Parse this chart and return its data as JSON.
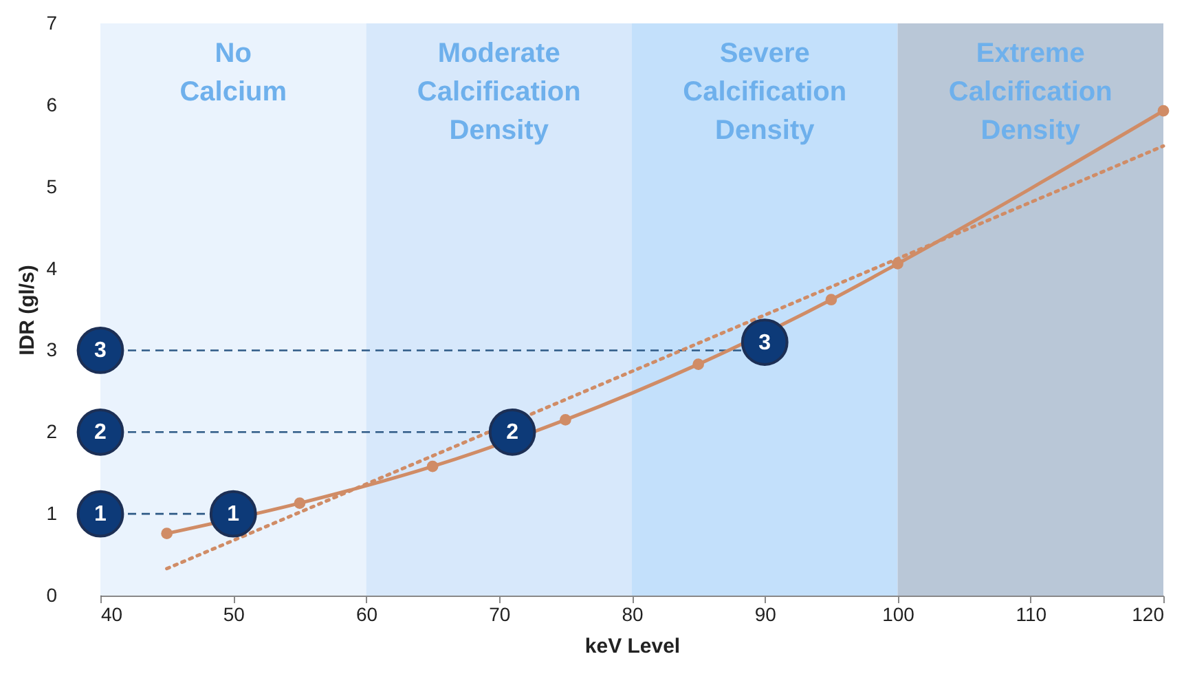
{
  "chart_data": {
    "type": "line",
    "xlabel": "keV Level",
    "ylabel": "IDR (gl/s)",
    "xlim": [
      40,
      120
    ],
    "xticks": [
      40,
      50,
      60,
      70,
      80,
      90,
      100,
      110,
      120
    ],
    "ylim": [
      0,
      7
    ],
    "yticks": [
      0,
      1,
      2,
      3,
      4,
      5,
      6,
      7
    ],
    "grid": false,
    "series": [
      {
        "x": [
          45,
          55,
          65,
          75,
          85,
          95,
          100,
          120
        ],
        "values": [
          0.76,
          1.13,
          1.58,
          2.15,
          2.83,
          3.62,
          4.06,
          5.93
        ],
        "color": "#d08c66",
        "marker": "circle",
        "line_style": "solid"
      },
      {
        "type": "line",
        "x": [
          45,
          120
        ],
        "values": [
          0.33,
          5.5
        ],
        "color": "#d08c66",
        "marker": "none",
        "line_style": "dotted"
      }
    ],
    "bands": [
      {
        "axis": "x",
        "from": 40,
        "to": 60,
        "label": "No\nCalcium",
        "color": "#eaf3fd"
      },
      {
        "axis": "x",
        "from": 60,
        "to": 80,
        "label": "Moderate\nCalcification\nDensity",
        "color": "#d7e8fb"
      },
      {
        "axis": "x",
        "from": 80,
        "to": 100,
        "label": "Severe\nCalcification\nDensity",
        "color": "#c3e0fb"
      },
      {
        "axis": "x",
        "from": 100,
        "to": 120,
        "label": "Extreme\nCalcification\nDensity",
        "color": "#b9c7d7"
      }
    ],
    "ref_lines": [
      {
        "axis": "y",
        "value": 1,
        "label": "1",
        "line_style": "dashed",
        "color": "#2e5a86"
      },
      {
        "axis": "y",
        "value": 2,
        "label": "2",
        "line_style": "dashed",
        "color": "#2e5a86"
      },
      {
        "axis": "y",
        "value": 3,
        "label": "3",
        "line_style": "dashed",
        "color": "#2e5a86"
      }
    ],
    "annotations": [
      {
        "text": "1",
        "x": 50,
        "y": 1
      },
      {
        "text": "2",
        "x": 71,
        "y": 2
      },
      {
        "text": "3",
        "x": 90,
        "y": 3.1
      }
    ]
  }
}
